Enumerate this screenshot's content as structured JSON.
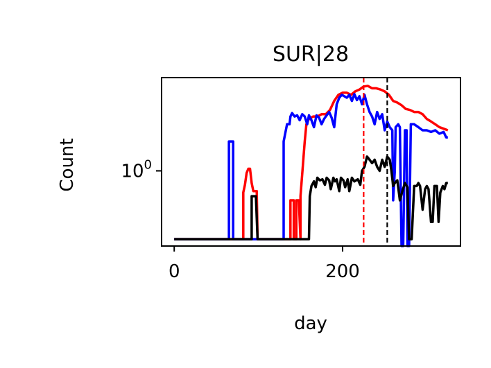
{
  "chart_data": {
    "type": "line",
    "title": "SUR|28",
    "xlabel": "day",
    "ylabel": "Count",
    "x_ticks": [
      {
        "value": 0,
        "label": "0"
      },
      {
        "value": 200,
        "label": "200"
      }
    ],
    "y_ticks": [
      {
        "value": 1,
        "label_base": "10",
        "label_exp": "0"
      }
    ],
    "yscale": "log",
    "xlim": [
      -15,
      340
    ],
    "ylim": [
      0.17,
      9
    ],
    "grid": false,
    "legend": "none",
    "vlines": [
      {
        "x": 225,
        "color": "#ff0000",
        "style": "dashed"
      },
      {
        "x": 253,
        "color": "#000000",
        "style": "dashed"
      }
    ],
    "series": [
      {
        "color": "#ff0000",
        "points": [
          [
            0,
            0.2
          ],
          [
            82,
            0.2
          ],
          [
            82,
            0.6
          ],
          [
            84,
            0.72
          ],
          [
            86,
            0.95
          ],
          [
            88,
            1.05
          ],
          [
            90,
            1.05
          ],
          [
            92,
            0.75
          ],
          [
            94,
            0.62
          ],
          [
            96,
            0.62
          ],
          [
            98,
            0.62
          ],
          [
            99,
            0.2
          ],
          [
            138,
            0.2
          ],
          [
            138,
            0.5
          ],
          [
            142,
            0.5
          ],
          [
            142,
            0.2
          ],
          [
            145,
            0.2
          ],
          [
            145,
            0.5
          ],
          [
            148,
            0.5
          ],
          [
            150,
            0.2
          ],
          [
            150,
            0.55
          ],
          [
            153,
            1.2
          ],
          [
            155,
            2.0
          ],
          [
            157,
            3.0
          ],
          [
            160,
            3.4
          ],
          [
            165,
            3.6
          ],
          [
            170,
            3.6
          ],
          [
            175,
            3.8
          ],
          [
            180,
            3.8
          ],
          [
            185,
            4.2
          ],
          [
            190,
            5.2
          ],
          [
            195,
            6.0
          ],
          [
            200,
            6.3
          ],
          [
            205,
            6.3
          ],
          [
            210,
            6.0
          ],
          [
            215,
            6.5
          ],
          [
            220,
            6.8
          ],
          [
            225,
            7.3
          ],
          [
            230,
            7.4
          ],
          [
            235,
            7.0
          ],
          [
            240,
            7.0
          ],
          [
            245,
            6.8
          ],
          [
            250,
            6.5
          ],
          [
            255,
            6.0
          ],
          [
            260,
            5.2
          ],
          [
            265,
            5.0
          ],
          [
            270,
            4.7
          ],
          [
            275,
            4.3
          ],
          [
            280,
            4.2
          ],
          [
            285,
            4.0
          ],
          [
            290,
            4.0
          ],
          [
            295,
            3.8
          ],
          [
            300,
            3.4
          ],
          [
            305,
            3.2
          ],
          [
            310,
            3.0
          ],
          [
            315,
            2.8
          ],
          [
            320,
            2.7
          ],
          [
            325,
            2.6
          ]
        ]
      },
      {
        "color": "#0000ff",
        "points": [
          [
            0,
            0.2
          ],
          [
            65,
            0.2
          ],
          [
            65,
            2.0
          ],
          [
            70,
            2.0
          ],
          [
            70,
            0.2
          ],
          [
            130,
            0.2
          ],
          [
            130,
            2.0
          ],
          [
            134,
            3.0
          ],
          [
            137,
            3.0
          ],
          [
            138,
            3.6
          ],
          [
            140,
            3.9
          ],
          [
            143,
            3.6
          ],
          [
            146,
            3.7
          ],
          [
            149,
            3.3
          ],
          [
            152,
            3.8
          ],
          [
            155,
            3.6
          ],
          [
            158,
            3.0
          ],
          [
            160,
            3.7
          ],
          [
            163,
            3.3
          ],
          [
            166,
            2.8
          ],
          [
            169,
            3.7
          ],
          [
            172,
            3.5
          ],
          [
            175,
            3.0
          ],
          [
            178,
            3.4
          ],
          [
            181,
            3.7
          ],
          [
            184,
            4.0
          ],
          [
            187,
            3.5
          ],
          [
            190,
            2.8
          ],
          [
            193,
            4.8
          ],
          [
            196,
            5.6
          ],
          [
            199,
            6.0
          ],
          [
            202,
            5.8
          ],
          [
            205,
            5.6
          ],
          [
            208,
            6.0
          ],
          [
            211,
            5.2
          ],
          [
            214,
            6.1
          ],
          [
            217,
            5.3
          ],
          [
            220,
            5.8
          ],
          [
            223,
            4.8
          ],
          [
            226,
            6.0
          ],
          [
            229,
            4.8
          ],
          [
            232,
            4.0
          ],
          [
            235,
            3.6
          ],
          [
            238,
            3.0
          ],
          [
            241,
            4.0
          ],
          [
            244,
            3.4
          ],
          [
            247,
            3.8
          ],
          [
            250,
            2.6
          ],
          [
            253,
            3.2
          ],
          [
            256,
            2.8
          ],
          [
            259,
            2.6
          ],
          [
            260,
            0.5
          ],
          [
            262,
            1.0
          ],
          [
            263,
            2.8
          ],
          [
            266,
            3.0
          ],
          [
            268,
            2.8
          ],
          [
            270,
            0.17
          ],
          [
            272,
            0.17
          ],
          [
            274,
            2.6
          ],
          [
            276,
            2.6
          ],
          [
            277,
            0.17
          ],
          [
            279,
            0.17
          ],
          [
            281,
            3.0
          ],
          [
            285,
            3.0
          ],
          [
            290,
            2.8
          ],
          [
            295,
            2.6
          ],
          [
            300,
            2.6
          ],
          [
            305,
            2.5
          ],
          [
            310,
            2.6
          ],
          [
            315,
            2.4
          ],
          [
            320,
            2.5
          ],
          [
            323,
            2.2
          ],
          [
            325,
            2.2
          ]
        ]
      },
      {
        "color": "#000000",
        "points": [
          [
            0,
            0.2
          ],
          [
            92,
            0.2
          ],
          [
            92,
            0.55
          ],
          [
            97,
            0.55
          ],
          [
            99,
            0.2
          ],
          [
            160,
            0.2
          ],
          [
            161,
            0.55
          ],
          [
            163,
            0.7
          ],
          [
            166,
            0.78
          ],
          [
            168,
            0.68
          ],
          [
            170,
            0.85
          ],
          [
            173,
            0.8
          ],
          [
            176,
            0.82
          ],
          [
            179,
            0.72
          ],
          [
            181,
            0.85
          ],
          [
            184,
            0.8
          ],
          [
            186,
            0.65
          ],
          [
            189,
            0.85
          ],
          [
            191,
            0.78
          ],
          [
            193,
            0.82
          ],
          [
            196,
            0.62
          ],
          [
            198,
            0.85
          ],
          [
            201,
            0.8
          ],
          [
            203,
            0.68
          ],
          [
            206,
            0.82
          ],
          [
            208,
            0.62
          ],
          [
            211,
            0.85
          ],
          [
            214,
            0.78
          ],
          [
            218,
            0.82
          ],
          [
            221,
            0.72
          ],
          [
            223,
            1.0
          ],
          [
            226,
            1.1
          ],
          [
            229,
            1.4
          ],
          [
            232,
            1.3
          ],
          [
            235,
            1.2
          ],
          [
            238,
            1.3
          ],
          [
            241,
            1.1
          ],
          [
            244,
            1.0
          ],
          [
            247,
            1.3
          ],
          [
            250,
            1.1
          ],
          [
            253,
            1.4
          ],
          [
            256,
            1.3
          ],
          [
            258,
            1.0
          ],
          [
            260,
            0.7
          ],
          [
            262,
            0.75
          ],
          [
            265,
            0.8
          ],
          [
            268,
            0.5
          ],
          [
            271,
            0.62
          ],
          [
            274,
            0.75
          ],
          [
            277,
            0.68
          ],
          [
            279,
            0.2
          ],
          [
            282,
            0.2
          ],
          [
            285,
            0.7
          ],
          [
            288,
            0.7
          ],
          [
            290,
            0.75
          ],
          [
            292,
            0.7
          ],
          [
            295,
            0.4
          ],
          [
            298,
            0.65
          ],
          [
            300,
            0.7
          ],
          [
            302,
            0.65
          ],
          [
            305,
            0.3
          ],
          [
            307,
            0.3
          ],
          [
            309,
            0.7
          ],
          [
            312,
            0.7
          ],
          [
            314,
            0.3
          ],
          [
            316,
            0.6
          ],
          [
            319,
            0.7
          ],
          [
            321,
            0.65
          ],
          [
            323,
            0.75
          ],
          [
            325,
            0.75
          ]
        ]
      }
    ]
  }
}
